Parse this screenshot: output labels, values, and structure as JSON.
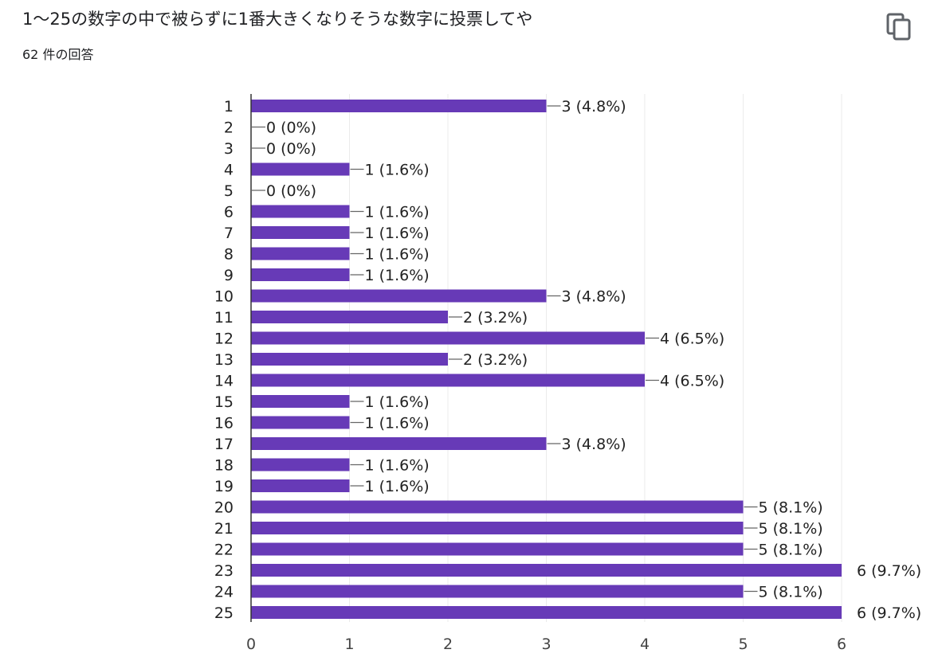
{
  "question": {
    "title": "1〜25の数字の中で被らずに1番大きくなりそうな数字に投票してや",
    "response_count": "62 件の回答"
  },
  "icons": {
    "copy": "copy-icon"
  },
  "colors": {
    "bar": "#673ab7",
    "grid": "#ebebeb",
    "axis": "#333333",
    "leader": "#666666"
  },
  "chart_data": {
    "type": "bar",
    "orientation": "horizontal",
    "categories": [
      "1",
      "2",
      "3",
      "4",
      "5",
      "6",
      "7",
      "8",
      "9",
      "10",
      "11",
      "12",
      "13",
      "14",
      "15",
      "16",
      "17",
      "18",
      "19",
      "20",
      "21",
      "22",
      "23",
      "24",
      "25"
    ],
    "values": [
      3,
      0,
      0,
      1,
      0,
      1,
      1,
      1,
      1,
      3,
      2,
      4,
      2,
      4,
      1,
      1,
      3,
      1,
      1,
      5,
      5,
      5,
      6,
      5,
      6
    ],
    "labels": [
      "3 (4.8%)",
      "0 (0%)",
      "0 (0%)",
      "1 (1.6%)",
      "0 (0%)",
      "1 (1.6%)",
      "1 (1.6%)",
      "1 (1.6%)",
      "1 (1.6%)",
      "3 (4.8%)",
      "2 (3.2%)",
      "4 (6.5%)",
      "2 (3.2%)",
      "4 (6.5%)",
      "1 (1.6%)",
      "1 (1.6%)",
      "3 (4.8%)",
      "1 (1.6%)",
      "1 (1.6%)",
      "5 (8.1%)",
      "5 (8.1%)",
      "5 (8.1%)",
      "6 (9.7%)",
      "5 (8.1%)",
      "6 (9.7%)"
    ],
    "xlim": [
      0,
      6
    ],
    "xticks": [
      "0",
      "1",
      "2",
      "3",
      "4",
      "5",
      "6"
    ],
    "grid": true,
    "legend": "none"
  }
}
